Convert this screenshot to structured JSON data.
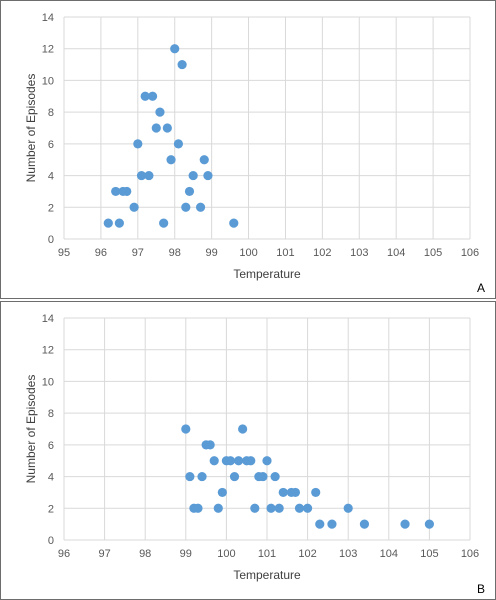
{
  "chart_data": [
    {
      "type": "scatter",
      "panel_label": "A",
      "xlabel": "Temperature",
      "ylabel": "Number of Episodes",
      "xlim": [
        95,
        106
      ],
      "ylim": [
        0,
        14
      ],
      "x_ticks": [
        "95",
        "96",
        "97",
        "98",
        "99",
        "100",
        "101",
        "102",
        "103",
        "104",
        "105",
        "106"
      ],
      "y_ticks": [
        "0",
        "2",
        "4",
        "6",
        "8",
        "10",
        "12",
        "14"
      ],
      "grid": true,
      "color": "#5b9bd5",
      "points": [
        [
          96.2,
          1
        ],
        [
          96.4,
          3
        ],
        [
          96.5,
          1
        ],
        [
          96.6,
          3
        ],
        [
          96.7,
          3
        ],
        [
          96.9,
          2
        ],
        [
          97.0,
          6
        ],
        [
          97.1,
          4
        ],
        [
          97.2,
          9
        ],
        [
          97.3,
          4
        ],
        [
          97.4,
          9
        ],
        [
          97.5,
          7
        ],
        [
          97.6,
          8
        ],
        [
          97.7,
          1
        ],
        [
          97.8,
          7
        ],
        [
          97.9,
          5
        ],
        [
          98.0,
          12
        ],
        [
          98.1,
          6
        ],
        [
          98.2,
          11
        ],
        [
          98.3,
          2
        ],
        [
          98.4,
          3
        ],
        [
          98.5,
          4
        ],
        [
          98.7,
          2
        ],
        [
          98.8,
          5
        ],
        [
          98.9,
          4
        ],
        [
          99.6,
          1
        ]
      ]
    },
    {
      "type": "scatter",
      "panel_label": "B",
      "xlabel": "Temperature",
      "ylabel": "Number of Episodes",
      "xlim": [
        96,
        106
      ],
      "ylim": [
        0,
        14
      ],
      "x_ticks": [
        "96",
        "97",
        "98",
        "99",
        "100",
        "101",
        "102",
        "103",
        "104",
        "105",
        "106"
      ],
      "y_ticks": [
        "0",
        "2",
        "4",
        "6",
        "8",
        "10",
        "12",
        "14"
      ],
      "grid": true,
      "color": "#5b9bd5",
      "points": [
        [
          99.0,
          7
        ],
        [
          99.1,
          4
        ],
        [
          99.2,
          2
        ],
        [
          99.3,
          2
        ],
        [
          99.4,
          4
        ],
        [
          99.5,
          6
        ],
        [
          99.6,
          6
        ],
        [
          99.7,
          5
        ],
        [
          99.8,
          2
        ],
        [
          99.9,
          3
        ],
        [
          100.0,
          5
        ],
        [
          100.1,
          5
        ],
        [
          100.2,
          4
        ],
        [
          100.3,
          5
        ],
        [
          100.4,
          7
        ],
        [
          100.5,
          5
        ],
        [
          100.6,
          5
        ],
        [
          100.7,
          2
        ],
        [
          100.8,
          4
        ],
        [
          100.9,
          4
        ],
        [
          101.0,
          5
        ],
        [
          101.1,
          2
        ],
        [
          101.2,
          4
        ],
        [
          101.3,
          2
        ],
        [
          101.4,
          3
        ],
        [
          101.6,
          3
        ],
        [
          101.7,
          3
        ],
        [
          101.8,
          2
        ],
        [
          102.0,
          2
        ],
        [
          102.2,
          3
        ],
        [
          102.3,
          1
        ],
        [
          102.6,
          1
        ],
        [
          103.0,
          2
        ],
        [
          103.4,
          1
        ],
        [
          104.4,
          1
        ],
        [
          105.0,
          1
        ]
      ]
    }
  ]
}
